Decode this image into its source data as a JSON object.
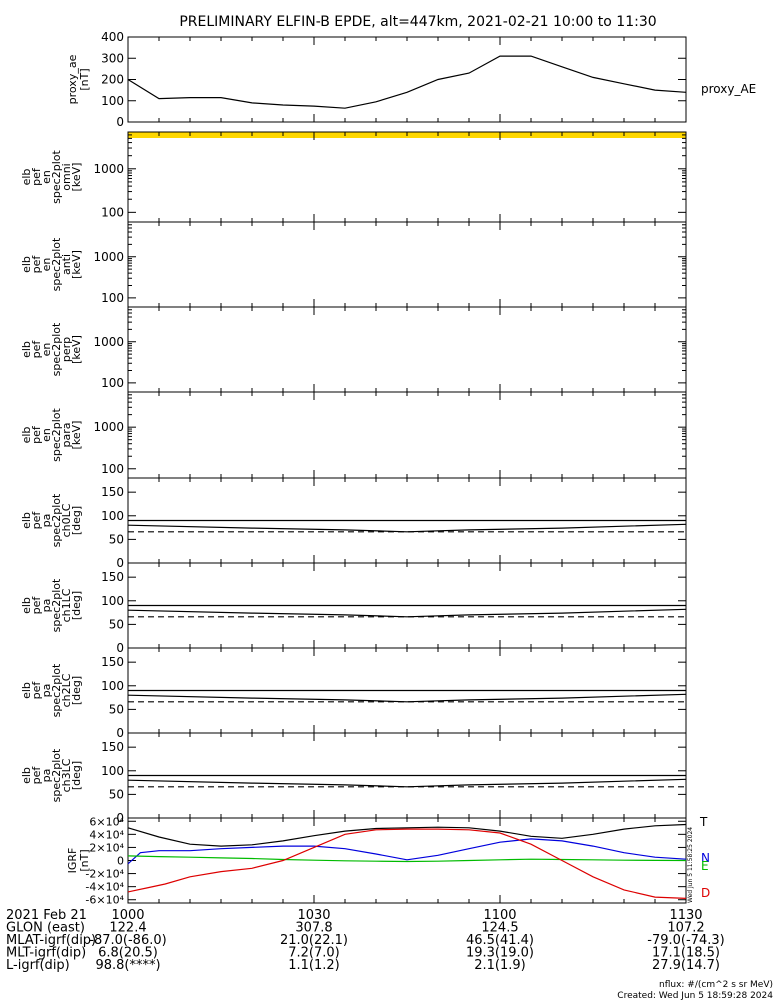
{
  "title": "PRELIMINARY ELFIN-B EPDE, alt=447km, 2021-02-21 10:00 to 11:30",
  "time_ticks": [
    "1000",
    "1030",
    "1100",
    "1130"
  ],
  "orbit_rows": [
    {
      "label": "2021 Feb 21",
      "values": [
        "",
        "",
        "",
        ""
      ]
    },
    {
      "label": "GLON (east)",
      "values": [
        "122.4",
        "307.8",
        "124.5",
        "107.2"
      ]
    },
    {
      "label": "MLAT-igrf(dip)",
      "values": [
        "-87.0(-86.0)",
        "21.0(22.1)",
        "46.5(41.4)",
        "-79.0(-74.3)"
      ]
    },
    {
      "label": "MLT-igrf(dip)",
      "values": [
        "6.8(20.5)",
        "7.2(7.0)",
        "19.3(19.0)",
        "17.1(18.5)"
      ]
    },
    {
      "label": "L-igrf(dip)",
      "values": [
        "98.8(****)",
        "1.1(1.2)",
        "2.1(1.9)",
        "27.9(14.7)"
      ]
    }
  ],
  "footer": {
    "units": "nflux: #/(cm^2 s sr MeV)",
    "created": "Created: Wed Jun  5 18:59:28 2024"
  },
  "side_stamp": "Wed Jun  5 11:58:25 2024",
  "colors": {
    "igrf_T": "#000000",
    "igrf_N": "#0000dd",
    "igrf_E": "#00bb00",
    "igrf_D": "#dd0000",
    "top_band": "#ffd700"
  },
  "chart_data": [
    {
      "type": "line",
      "ylabel_lines": [
        "proxy_ae",
        "[nT]"
      ],
      "ylim": [
        0,
        400
      ],
      "y_ticks": [
        "0",
        "100",
        "200",
        "300",
        "400"
      ],
      "series": [
        {
          "name": "proxy_AE",
          "x": [
            0,
            5,
            10,
            15,
            20,
            25,
            30,
            35,
            40,
            45,
            50,
            55,
            60,
            65,
            70,
            75,
            80,
            85,
            90
          ],
          "values": [
            200,
            110,
            115,
            115,
            90,
            80,
            75,
            65,
            95,
            140,
            200,
            230,
            310,
            310,
            260,
            210,
            180,
            150,
            140
          ]
        }
      ]
    },
    {
      "type": "heatmap",
      "ylabel_lines": [
        "elb",
        "pef",
        "en",
        "spec2plot",
        "omni",
        "[keV]"
      ],
      "y_ticks": [
        "100",
        "1000"
      ],
      "values": []
    },
    {
      "type": "heatmap",
      "ylabel_lines": [
        "elb",
        "pef",
        "en",
        "spec2plot",
        "anti",
        "[keV]"
      ],
      "y_ticks": [
        "100",
        "1000"
      ],
      "values": []
    },
    {
      "type": "heatmap",
      "ylabel_lines": [
        "elb",
        "pef",
        "en",
        "spec2plot",
        "perp",
        "[keV]"
      ],
      "y_ticks": [
        "100",
        "1000"
      ],
      "values": []
    },
    {
      "type": "heatmap",
      "ylabel_lines": [
        "elb",
        "pef",
        "en",
        "spec2plot",
        "para",
        "[keV]"
      ],
      "y_ticks": [
        "100",
        "1000"
      ],
      "values": []
    },
    {
      "type": "line",
      "ylabel_lines": [
        "elb",
        "pef",
        "pa",
        "spec2plot",
        "ch0LC",
        "[deg]"
      ],
      "ylim": [
        0,
        180
      ],
      "y_ticks": [
        "0",
        "50",
        "100",
        "150"
      ],
      "series": [
        {
          "x": [
            0,
            90
          ],
          "values": [
            90,
            90
          ]
        },
        {
          "x": [
            0,
            20,
            35,
            45,
            55,
            70,
            90
          ],
          "values": [
            80,
            74,
            70,
            66,
            70,
            74,
            82
          ]
        },
        {
          "x": [
            0,
            90
          ],
          "values": [
            66,
            66
          ]
        }
      ]
    },
    {
      "type": "line",
      "ylabel_lines": [
        "elb",
        "pef",
        "pa",
        "spec2plot",
        "ch1LC",
        "[deg]"
      ],
      "ylim": [
        0,
        180
      ],
      "y_ticks": [
        "0",
        "50",
        "100",
        "150"
      ],
      "series": [
        {
          "x": [
            0,
            90
          ],
          "values": [
            90,
            90
          ]
        },
        {
          "x": [
            0,
            20,
            35,
            45,
            55,
            70,
            90
          ],
          "values": [
            80,
            74,
            70,
            66,
            70,
            74,
            82
          ]
        },
        {
          "x": [
            0,
            90
          ],
          "values": [
            66,
            66
          ]
        }
      ]
    },
    {
      "type": "line",
      "ylabel_lines": [
        "elb",
        "pef",
        "pa",
        "spec2plot",
        "ch2LC",
        "[deg]"
      ],
      "ylim": [
        0,
        180
      ],
      "y_ticks": [
        "0",
        "50",
        "100",
        "150"
      ],
      "series": [
        {
          "x": [
            0,
            90
          ],
          "values": [
            90,
            90
          ]
        },
        {
          "x": [
            0,
            20,
            35,
            45,
            55,
            70,
            90
          ],
          "values": [
            80,
            74,
            70,
            66,
            70,
            74,
            82
          ]
        },
        {
          "x": [
            0,
            90
          ],
          "values": [
            66,
            66
          ]
        }
      ]
    },
    {
      "type": "line",
      "ylabel_lines": [
        "elb",
        "pef",
        "pa",
        "spec2plot",
        "ch3LC",
        "[deg]"
      ],
      "ylim": [
        0,
        180
      ],
      "y_ticks": [
        "0",
        "50",
        "100",
        "150"
      ],
      "series": [
        {
          "x": [
            0,
            90
          ],
          "values": [
            90,
            90
          ]
        },
        {
          "x": [
            0,
            20,
            35,
            45,
            55,
            70,
            90
          ],
          "values": [
            80,
            74,
            70,
            66,
            70,
            74,
            82
          ]
        },
        {
          "x": [
            0,
            90
          ],
          "values": [
            66,
            66
          ]
        }
      ]
    },
    {
      "type": "line",
      "ylabel_lines": [
        "IGRF",
        "[nT]"
      ],
      "ylim": [
        -65000,
        65000
      ],
      "y_ticks": [
        "-6×10⁴",
        "-4×10⁴",
        "-2×10⁴",
        "0",
        "2×10⁴",
        "4×10⁴",
        "6×10⁴"
      ],
      "series": [
        {
          "name": "T",
          "x": [
            0,
            5,
            10,
            15,
            20,
            25,
            30,
            35,
            40,
            45,
            50,
            55,
            60,
            65,
            70,
            75,
            80,
            85,
            90
          ],
          "values": [
            50000,
            36000,
            25000,
            22000,
            24000,
            30000,
            38000,
            45000,
            49000,
            50000,
            51000,
            50000,
            45000,
            37000,
            34000,
            40000,
            48000,
            53000,
            55000
          ]
        },
        {
          "name": "N",
          "x": [
            0,
            2,
            5,
            10,
            15,
            20,
            25,
            30,
            35,
            40,
            45,
            50,
            55,
            60,
            65,
            70,
            75,
            80,
            85,
            90
          ],
          "values": [
            -5000,
            12000,
            15000,
            15000,
            18000,
            20000,
            22000,
            22000,
            18000,
            10000,
            1000,
            8000,
            18000,
            28000,
            33000,
            30000,
            22000,
            12000,
            5000,
            2000
          ]
        },
        {
          "name": "E",
          "x": [
            0,
            5,
            10,
            15,
            20,
            25,
            30,
            35,
            40,
            45,
            50,
            55,
            60,
            65,
            70,
            75,
            80,
            85,
            90
          ],
          "values": [
            7000,
            6000,
            5000,
            4000,
            3000,
            1500,
            500,
            -500,
            -1000,
            -1500,
            -1000,
            0,
            1000,
            2000,
            1500,
            1000,
            500,
            200,
            0
          ]
        },
        {
          "name": "D",
          "x": [
            0,
            3,
            6,
            10,
            15,
            20,
            25,
            30,
            35,
            40,
            45,
            50,
            55,
            60,
            65,
            70,
            75,
            80,
            85,
            90
          ],
          "values": [
            -48000,
            -42000,
            -36000,
            -25000,
            -17000,
            -12000,
            0,
            20000,
            40000,
            47000,
            48000,
            48000,
            47000,
            42000,
            25000,
            0,
            -25000,
            -45000,
            -56000,
            -58000
          ]
        }
      ]
    }
  ]
}
